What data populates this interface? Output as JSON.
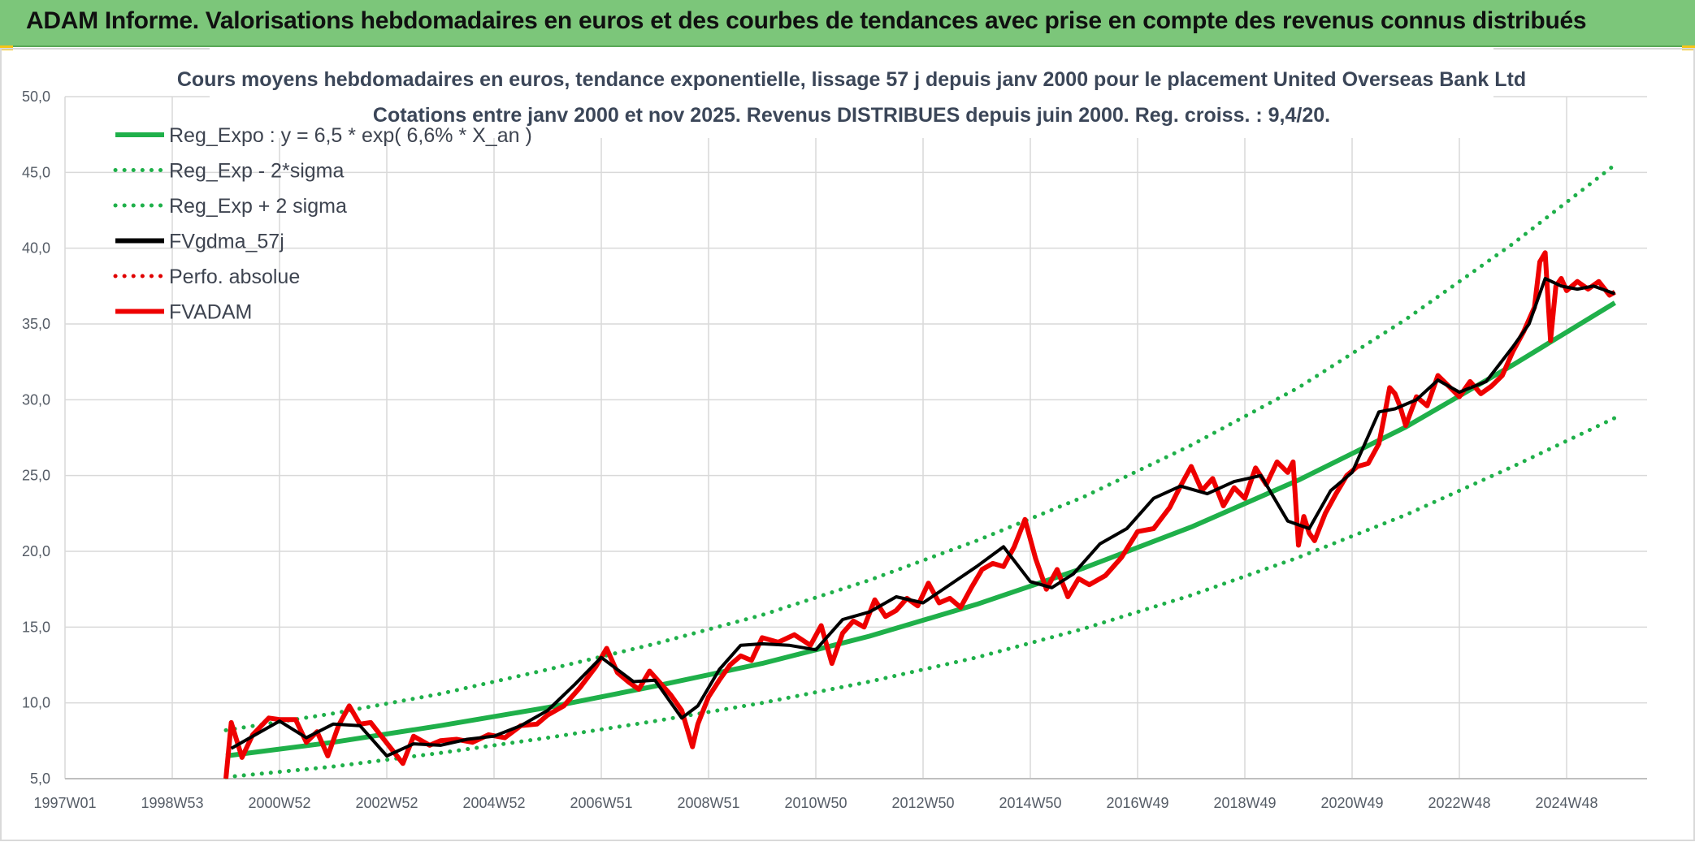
{
  "banner": {
    "title": "ADAM Informe. Valorisations hebdomadaires en euros et des courbes de tendances avec prise en compte des revenus connus distribués"
  },
  "colors": {
    "banner_bg": "#7cc67a",
    "trend": "#1fb04a",
    "sigma": "#1fb04a",
    "smoothed": "#000000",
    "perf": "#e00000",
    "price": "#ee0000",
    "grid": "#d9d9d9"
  },
  "chart_data": {
    "type": "line",
    "title": "Cours moyens hebdomadaires en euros, tendance exponentielle, lissage 57 j depuis janv 2000 pour le placement United Overseas Bank Ltd",
    "subtitle": "Cotations entre janv 2000 et nov 2025. Revenus DISTRIBUES depuis juin 2000. Reg. croiss. : 9,4/20.",
    "x_tick_labels": [
      "1997W01",
      "1998W53",
      "2000W52",
      "2002W52",
      "2004W52",
      "2006W51",
      "2008W51",
      "2010W50",
      "2012W50",
      "2014W50",
      "2016W49",
      "2018W49",
      "2020W49",
      "2022W48",
      "2024W48"
    ],
    "x_tick_years": [
      1997.0,
      1999.0,
      2001.0,
      2003.0,
      2005.0,
      2007.0,
      2009.0,
      2011.0,
      2013.0,
      2015.0,
      2017.0,
      2019.0,
      2021.0,
      2023.0,
      2025.0
    ],
    "xlim": [
      1997.0,
      2026.5
    ],
    "ylim": [
      5,
      50
    ],
    "y_ticks": [
      "5,0",
      "10,0",
      "15,0",
      "20,0",
      "25,0",
      "30,0",
      "35,0",
      "40,0",
      "45,0",
      "50,0"
    ],
    "grid": true,
    "legend_position": "top-left",
    "series": [
      {
        "name": "Reg_Expo : y = 6,5 * exp( 6,6% *  X_an )",
        "style": "solid-thick",
        "color": "#1fb04a",
        "x": [
          2000.0,
          2002.0,
          2004.0,
          2006.0,
          2008.0,
          2010.0,
          2012.0,
          2014.0,
          2016.0,
          2018.0,
          2020.0,
          2022.0,
          2024.0,
          2025.9
        ],
        "y": [
          6.5,
          7.4,
          8.5,
          9.7,
          11.1,
          12.6,
          14.4,
          16.5,
          18.9,
          21.6,
          24.7,
          28.2,
          32.3,
          36.4
        ]
      },
      {
        "name": "Reg_Exp - 2*sigma",
        "style": "dotted",
        "color": "#1fb04a",
        "x": [
          2000.0,
          2002.0,
          2004.0,
          2006.0,
          2008.0,
          2010.0,
          2012.0,
          2014.0,
          2016.0,
          2018.0,
          2020.0,
          2022.0,
          2024.0,
          2025.9
        ],
        "y": [
          5.1,
          5.8,
          6.7,
          7.7,
          8.8,
          10.0,
          11.4,
          13.0,
          14.9,
          17.1,
          19.6,
          22.4,
          25.6,
          28.8
        ]
      },
      {
        "name": "Reg_Exp + 2 sigma",
        "style": "dotted",
        "color": "#1fb04a",
        "x": [
          2000.0,
          2002.0,
          2004.0,
          2006.0,
          2008.0,
          2010.0,
          2012.0,
          2014.0,
          2016.0,
          2018.0,
          2020.0,
          2022.0,
          2024.0,
          2025.9
        ],
        "y": [
          8.2,
          9.3,
          10.6,
          12.2,
          13.9,
          15.8,
          18.1,
          20.7,
          23.6,
          27.0,
          30.8,
          35.3,
          40.3,
          45.5
        ]
      },
      {
        "name": "FVgdma_57j",
        "style": "solid",
        "color": "#000000",
        "x": [
          2000.1,
          2000.5,
          2001.0,
          2001.5,
          2002.0,
          2002.5,
          2003.0,
          2003.5,
          2004.0,
          2004.5,
          2005.0,
          2005.5,
          2006.0,
          2006.5,
          2007.0,
          2007.3,
          2007.6,
          2008.0,
          2008.5,
          2008.8,
          2009.2,
          2009.6,
          2010.0,
          2010.5,
          2011.0,
          2011.5,
          2012.0,
          2012.5,
          2013.0,
          2013.5,
          2014.0,
          2014.5,
          2015.0,
          2015.4,
          2015.8,
          2016.3,
          2016.8,
          2017.3,
          2017.8,
          2018.3,
          2018.8,
          2019.3,
          2019.8,
          2020.2,
          2020.6,
          2021.0,
          2021.5,
          2021.8,
          2022.2,
          2022.6,
          2023.0,
          2023.5,
          2024.0,
          2024.3,
          2024.6,
          2024.9,
          2025.2,
          2025.5,
          2025.9
        ],
        "y": [
          7.0,
          7.8,
          8.8,
          7.7,
          8.6,
          8.5,
          6.5,
          7.3,
          7.2,
          7.6,
          7.8,
          8.5,
          9.5,
          11.2,
          13.0,
          12.2,
          11.4,
          11.5,
          9.0,
          9.8,
          12.2,
          13.8,
          13.9,
          13.8,
          13.5,
          15.5,
          16.0,
          17.0,
          16.6,
          17.8,
          19.0,
          20.3,
          18.0,
          17.6,
          18.5,
          20.5,
          21.5,
          23.5,
          24.3,
          23.8,
          24.6,
          25.0,
          22.0,
          21.5,
          24.0,
          25.2,
          29.2,
          29.4,
          30.0,
          31.3,
          30.5,
          31.2,
          33.5,
          35.0,
          38.0,
          37.5,
          37.3,
          37.5,
          37.0
        ]
      },
      {
        "name": "Perfo. absolue",
        "style": "dotted",
        "color": "#e00000",
        "x": [],
        "y": []
      },
      {
        "name": "FVADAM",
        "style": "solid-thick",
        "color": "#ee0000",
        "x": [
          2000.0,
          2000.1,
          2000.3,
          2000.5,
          2000.8,
          2001.0,
          2001.3,
          2001.5,
          2001.7,
          2001.9,
          2002.1,
          2002.3,
          2002.5,
          2002.7,
          2002.9,
          2003.1,
          2003.3,
          2003.5,
          2003.8,
          2004.0,
          2004.3,
          2004.6,
          2004.9,
          2005.2,
          2005.5,
          2005.8,
          2006.0,
          2006.3,
          2006.6,
          2006.9,
          2007.1,
          2007.3,
          2007.5,
          2007.7,
          2007.9,
          2008.1,
          2008.3,
          2008.5,
          2008.7,
          2008.8,
          2009.0,
          2009.2,
          2009.4,
          2009.6,
          2009.8,
          2010.0,
          2010.3,
          2010.6,
          2010.9,
          2011.1,
          2011.3,
          2011.5,
          2011.7,
          2011.9,
          2012.1,
          2012.3,
          2012.5,
          2012.7,
          2012.9,
          2013.1,
          2013.3,
          2013.5,
          2013.7,
          2013.9,
          2014.1,
          2014.3,
          2014.5,
          2014.7,
          2014.9,
          2015.1,
          2015.3,
          2015.5,
          2015.7,
          2015.9,
          2016.1,
          2016.4,
          2016.7,
          2017.0,
          2017.3,
          2017.6,
          2017.8,
          2018.0,
          2018.2,
          2018.4,
          2018.6,
          2018.8,
          2019.0,
          2019.2,
          2019.4,
          2019.6,
          2019.8,
          2019.9,
          2020.0,
          2020.1,
          2020.2,
          2020.3,
          2020.5,
          2020.7,
          2020.9,
          2021.1,
          2021.3,
          2021.5,
          2021.6,
          2021.7,
          2021.8,
          2021.9,
          2022.0,
          2022.2,
          2022.4,
          2022.6,
          2022.8,
          2023.0,
          2023.2,
          2023.4,
          2023.6,
          2023.8,
          2024.0,
          2024.2,
          2024.4,
          2024.5,
          2024.6,
          2024.7,
          2024.8,
          2024.9,
          2025.0,
          2025.2,
          2025.4,
          2025.6,
          2025.8,
          2025.9
        ],
        "y": [
          5.0,
          8.7,
          6.4,
          7.9,
          9.0,
          8.9,
          8.9,
          7.4,
          8.1,
          6.5,
          8.5,
          9.8,
          8.6,
          8.7,
          7.8,
          6.9,
          6.0,
          7.8,
          7.2,
          7.5,
          7.6,
          7.4,
          7.9,
          7.7,
          8.5,
          8.6,
          9.2,
          9.8,
          11.0,
          12.4,
          13.6,
          12.0,
          11.4,
          10.9,
          12.1,
          11.3,
          10.5,
          9.5,
          7.1,
          8.6,
          10.4,
          11.5,
          12.5,
          13.1,
          12.8,
          14.3,
          14.0,
          14.5,
          13.8,
          15.1,
          12.6,
          14.6,
          15.4,
          15.0,
          16.8,
          15.7,
          16.1,
          16.9,
          16.4,
          17.9,
          16.6,
          16.9,
          16.3,
          17.6,
          18.8,
          19.2,
          19.0,
          20.3,
          22.1,
          19.5,
          17.5,
          18.8,
          17.0,
          18.2,
          17.8,
          18.4,
          19.6,
          21.3,
          21.5,
          22.9,
          24.3,
          25.6,
          24.0,
          24.8,
          23.0,
          24.2,
          23.5,
          25.5,
          24.4,
          25.9,
          25.2,
          25.9,
          20.4,
          22.3,
          21.2,
          20.7,
          22.5,
          23.8,
          25.0,
          25.6,
          25.8,
          27.1,
          28.9,
          30.8,
          30.4,
          29.5,
          28.3,
          30.2,
          29.6,
          31.6,
          30.9,
          30.2,
          31.2,
          30.4,
          30.9,
          31.6,
          33.2,
          34.5,
          36.1,
          39.1,
          39.7,
          33.9,
          37.5,
          38.0,
          37.2,
          37.8,
          37.3,
          37.8,
          36.9,
          37.1
        ]
      }
    ]
  }
}
